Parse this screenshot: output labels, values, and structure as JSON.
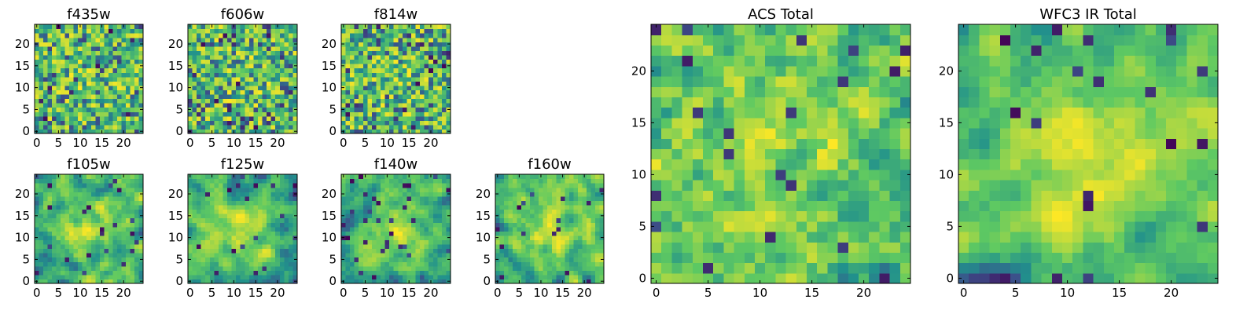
{
  "chart_data": [
    {
      "type": "heatmap",
      "title": "f435w",
      "rows": 25,
      "cols": 25,
      "xticks": [
        "0",
        "5",
        "10",
        "15",
        "20"
      ],
      "yticks": [
        "0",
        "5",
        "10",
        "15",
        "20"
      ],
      "xlim": [
        0,
        24
      ],
      "ylim": [
        0,
        24
      ],
      "style": "noise",
      "seed": 11
    },
    {
      "type": "heatmap",
      "title": "f606w",
      "rows": 25,
      "cols": 25,
      "xticks": [
        "0",
        "5",
        "10",
        "15",
        "20"
      ],
      "yticks": [
        "0",
        "5",
        "10",
        "15",
        "20"
      ],
      "xlim": [
        0,
        24
      ],
      "ylim": [
        0,
        24
      ],
      "style": "noise",
      "seed": 23
    },
    {
      "type": "heatmap",
      "title": "f814w",
      "rows": 25,
      "cols": 25,
      "xticks": [
        "0",
        "5",
        "10",
        "15",
        "20"
      ],
      "yticks": [
        "0",
        "5",
        "10",
        "15",
        "20"
      ],
      "xlim": [
        0,
        24
      ],
      "ylim": [
        0,
        24
      ],
      "style": "noise",
      "seed": 37
    },
    {
      "type": "heatmap",
      "title": "f105w",
      "rows": 25,
      "cols": 25,
      "xticks": [
        "0",
        "5",
        "10",
        "15",
        "20"
      ],
      "yticks": [
        "0",
        "5",
        "10",
        "15",
        "20"
      ],
      "xlim": [
        0,
        24
      ],
      "ylim": [
        0,
        24
      ],
      "style": "smooth",
      "seed": 41
    },
    {
      "type": "heatmap",
      "title": "f125w",
      "rows": 25,
      "cols": 25,
      "xticks": [
        "0",
        "5",
        "10",
        "15",
        "20"
      ],
      "yticks": [
        "0",
        "5",
        "10",
        "15",
        "20"
      ],
      "xlim": [
        0,
        24
      ],
      "ylim": [
        0,
        24
      ],
      "style": "smooth",
      "seed": 53
    },
    {
      "type": "heatmap",
      "title": "f140w",
      "rows": 25,
      "cols": 25,
      "xticks": [
        "0",
        "5",
        "10",
        "15",
        "20"
      ],
      "yticks": [
        "0",
        "5",
        "10",
        "15",
        "20"
      ],
      "xlim": [
        0,
        24
      ],
      "ylim": [
        0,
        24
      ],
      "style": "smooth",
      "seed": 67
    },
    {
      "type": "heatmap",
      "title": "f160w",
      "rows": 25,
      "cols": 25,
      "xticks": [
        "0",
        "5",
        "10",
        "15",
        "20"
      ],
      "yticks": [
        "0",
        "5",
        "10",
        "15",
        "20"
      ],
      "xlim": [
        0,
        24
      ],
      "ylim": [
        0,
        24
      ],
      "style": "smooth",
      "seed": 79
    },
    {
      "type": "heatmap",
      "title": "ACS Total",
      "rows": 25,
      "cols": 25,
      "xticks": [
        "0",
        "5",
        "10",
        "15",
        "20"
      ],
      "yticks": [
        "0",
        "5",
        "10",
        "15",
        "20"
      ],
      "xlim": [
        0,
        24
      ],
      "ylim": [
        0,
        24
      ],
      "style": "medium",
      "seed": 83
    },
    {
      "type": "heatmap",
      "title": "WFC3 IR Total",
      "rows": 25,
      "cols": 25,
      "xticks": [
        "0",
        "5",
        "10",
        "15",
        "20"
      ],
      "yticks": [
        "0",
        "5",
        "10",
        "15",
        "20"
      ],
      "xlim": [
        0,
        24
      ],
      "ylim": [
        0,
        24
      ],
      "style": "smooth",
      "seed": 97
    }
  ],
  "colormap": [
    "#440154",
    "#3b528b",
    "#21918c",
    "#5ec962",
    "#fde725"
  ]
}
